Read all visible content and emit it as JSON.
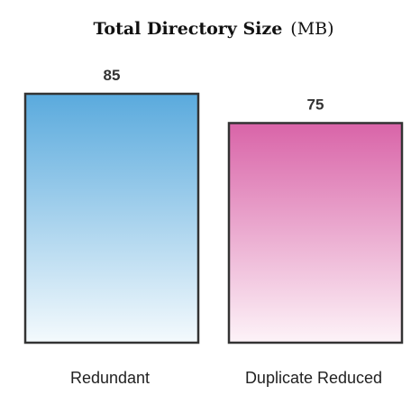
{
  "colors": {
    "series": [
      {
        "top": "#5aaadd",
        "bottom": "#f4fafd"
      },
      {
        "top": "#d964a8",
        "bottom": "#fdf3f8"
      }
    ],
    "outline": "#333333"
  },
  "chart_data": {
    "type": "bar",
    "title": "Total Directory Size",
    "title_unit": "(MB)",
    "categories": [
      "Redundant",
      "Duplicate Reduced"
    ],
    "values": [
      85,
      75
    ],
    "xlabel": "",
    "ylabel": "",
    "ylim": [
      0,
      85
    ],
    "grid": false,
    "legend": "none"
  }
}
